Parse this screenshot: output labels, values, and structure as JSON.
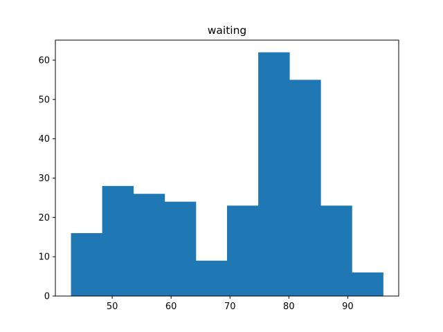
{
  "chart_data": {
    "type": "bar",
    "title": "waiting",
    "xlabel": "",
    "ylabel": "",
    "bin_edges": [
      43.0,
      48.3,
      53.6,
      58.9,
      64.2,
      69.5,
      74.8,
      80.1,
      85.4,
      90.7,
      96.0
    ],
    "values": [
      16,
      28,
      26,
      24,
      9,
      23,
      62,
      55,
      23,
      6
    ],
    "xlim": [
      40.35,
      98.65
    ],
    "ylim": [
      0,
      65.1
    ],
    "xticks": [
      50,
      60,
      70,
      80,
      90
    ],
    "yticks": [
      0,
      10,
      20,
      30,
      40,
      50,
      60
    ],
    "grid": false,
    "bar_color": "#1f77b4"
  }
}
